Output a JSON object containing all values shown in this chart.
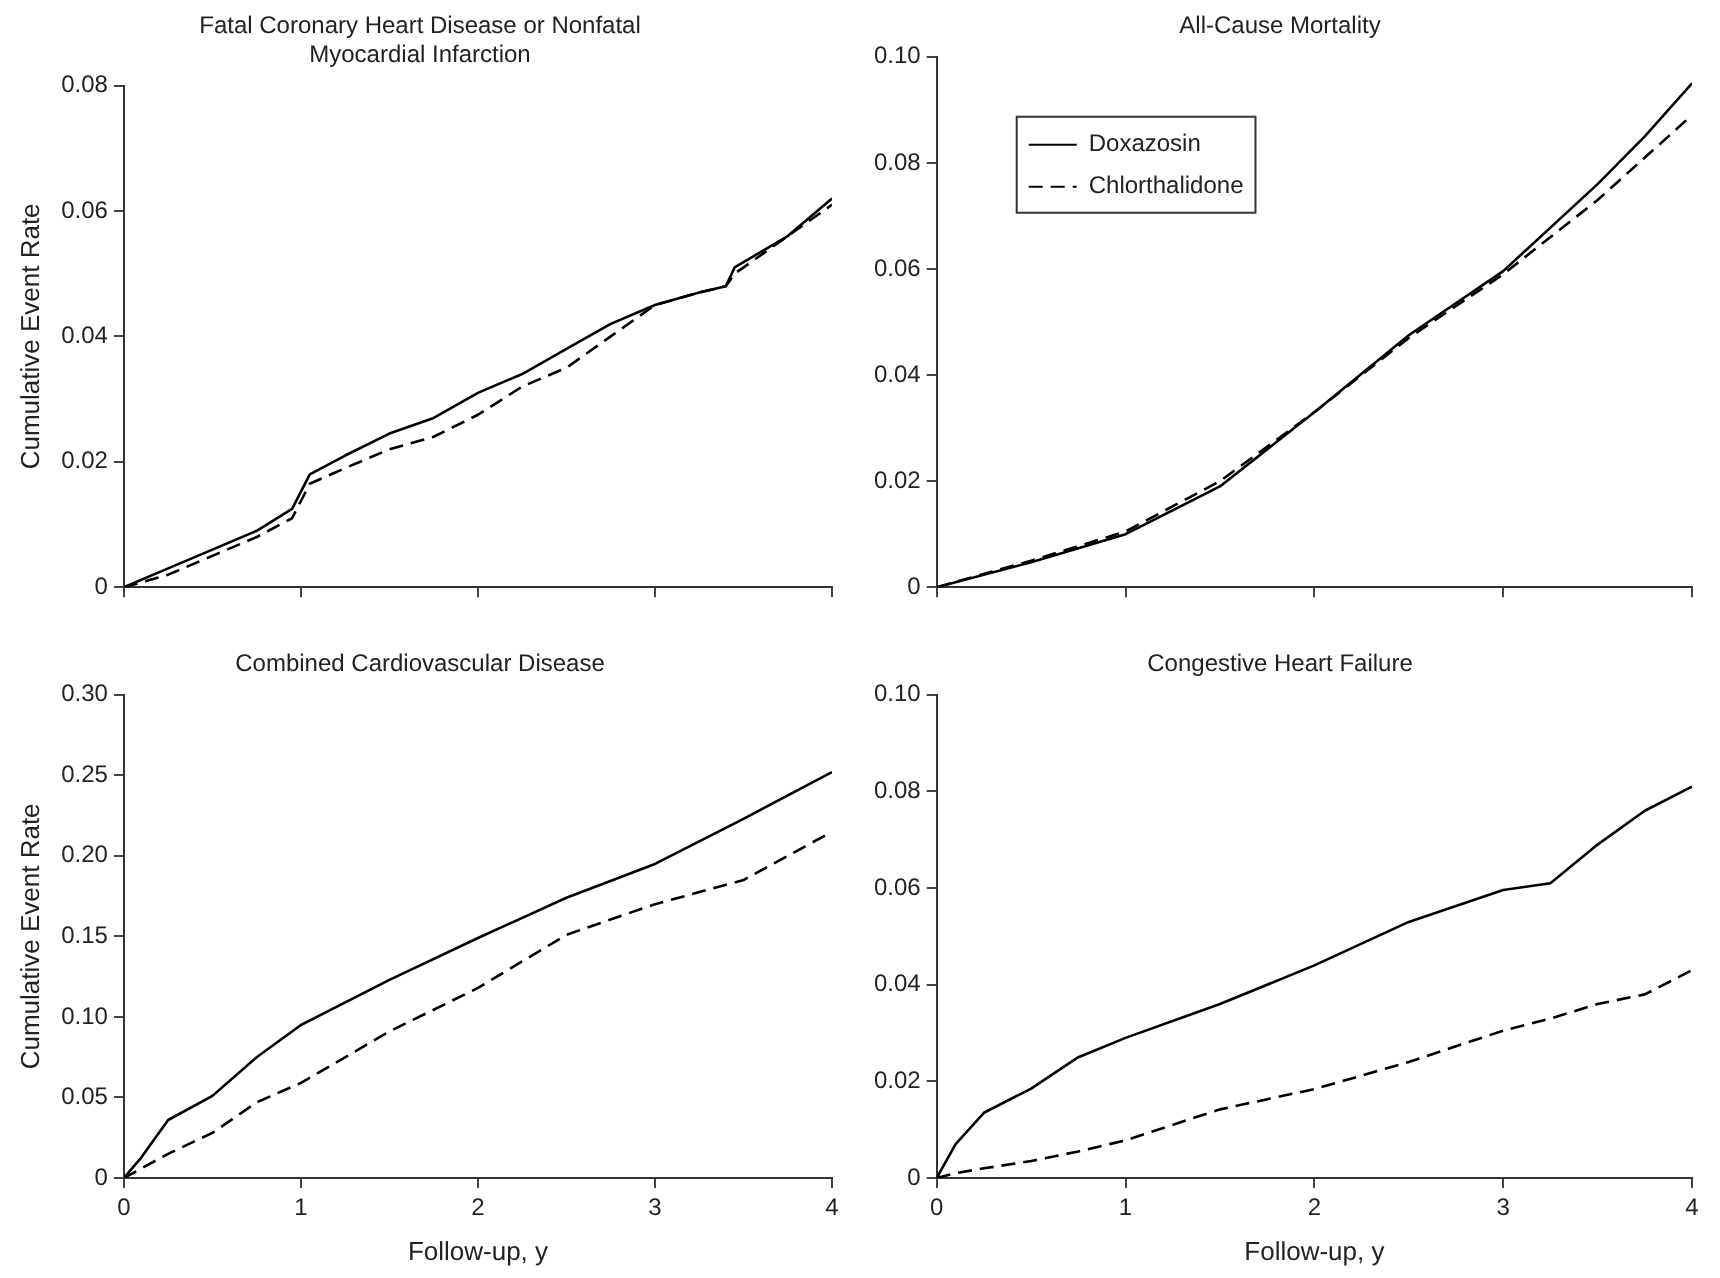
{
  "chart_data": [
    {
      "type": "line",
      "title": "Fatal Coronary Heart Disease or Nonfatal Myocardial Infarction",
      "ylabel": "Cumulative Event Rate",
      "x": [
        0,
        0.25,
        0.5,
        0.75,
        0.95,
        1.05,
        1.25,
        1.5,
        1.75,
        2,
        2.25,
        2.5,
        2.75,
        3,
        3.25,
        3.4,
        3.45,
        3.75,
        4
      ],
      "series": [
        {
          "color": "#000000",
          "line_style": "solid",
          "values": [
            0,
            0.003,
            0.006,
            0.009,
            0.0125,
            0.018,
            0.021,
            0.0245,
            0.027,
            0.031,
            0.034,
            0.038,
            0.042,
            0.045,
            0.047,
            0.048,
            0.051,
            0.056,
            0.062
          ]
        },
        {
          "color": "#000000",
          "line_style": "dashed",
          "values": [
            0,
            0.002,
            0.005,
            0.008,
            0.011,
            0.0165,
            0.019,
            0.022,
            0.024,
            0.0275,
            0.032,
            0.035,
            0.04,
            0.045,
            0.047,
            0.048,
            0.05,
            0.056,
            0.061
          ]
        }
      ],
      "xlim": [
        0,
        4
      ],
      "xticks": [
        {
          "value": 0,
          "label": null
        },
        {
          "value": 1,
          "label": null
        },
        {
          "value": 2,
          "label": null
        },
        {
          "value": 3,
          "label": null
        },
        {
          "value": 4,
          "label": null
        }
      ],
      "ylim": [
        0,
        0.08
      ],
      "yticks": [
        0,
        0.02,
        0.04,
        0.06,
        0.08
      ],
      "tick_labels": "y",
      "grid": false,
      "legend": false,
      "marker": "none"
    },
    {
      "type": "line",
      "title": "All-Cause Mortality",
      "x": [
        0,
        0.5,
        1,
        1.5,
        2,
        2.5,
        3,
        3.5,
        3.75,
        4
      ],
      "series": [
        {
          "name": "Doxazosin",
          "color": "#000000",
          "line_style": "solid",
          "values": [
            0,
            0.0047,
            0.01,
            0.019,
            0.033,
            0.0475,
            0.0596,
            0.076,
            0.085,
            0.095
          ]
        },
        {
          "name": "Chlorthalidone",
          "color": "#000000",
          "line_style": "dashed",
          "values": [
            0,
            0.005,
            0.0105,
            0.02,
            0.033,
            0.047,
            0.059,
            0.073,
            0.081,
            0.089
          ]
        }
      ],
      "xlim": [
        0,
        4
      ],
      "xticks": [
        {
          "value": 0,
          "label": null
        },
        {
          "value": 1,
          "label": null
        },
        {
          "value": 2,
          "label": null
        },
        {
          "value": 3,
          "label": null
        },
        {
          "value": 4,
          "label": null
        }
      ],
      "ylim": [
        0,
        0.1
      ],
      "yticks": [
        0,
        0.02,
        0.04,
        0.06,
        0.08,
        {
          "value": 0.1,
          "label": "0.10"
        }
      ],
      "tick_labels": "y",
      "grid": false,
      "legend": "top left",
      "marker": "none"
    },
    {
      "type": "line",
      "title": "Combined Cardiovascular Disease",
      "xlabel": "Follow-up, y",
      "ylabel": "Cumulative Event Rate",
      "x": [
        0,
        0.1,
        0.25,
        0.5,
        0.75,
        1,
        1.5,
        2,
        2.5,
        3,
        3.5,
        4
      ],
      "series": [
        {
          "color": "#000000",
          "line_style": "solid",
          "values": [
            0,
            0.013,
            0.036,
            0.051,
            0.075,
            0.095,
            0.123,
            0.149,
            0.174,
            0.195,
            0.223,
            0.252
          ]
        },
        {
          "color": "#000000",
          "line_style": "dashed",
          "values": [
            0,
            0.006,
            0.015,
            0.028,
            0.047,
            0.059,
            0.091,
            0.118,
            0.151,
            0.17,
            0.185,
            0.215
          ]
        }
      ],
      "xlim": [
        0,
        4
      ],
      "xticks": [
        0,
        1,
        2,
        3,
        4
      ],
      "ylim": [
        0,
        0.3
      ],
      "yticks": [
        0,
        0.05,
        {
          "value": 0.1,
          "label": "0.10"
        },
        0.15,
        {
          "value": 0.2,
          "label": "0.20"
        },
        0.25,
        {
          "value": 0.3,
          "label": "0.30"
        }
      ],
      "grid": false,
      "legend": false,
      "marker": "none"
    },
    {
      "type": "line",
      "title": "Congestive Heart Failure",
      "xlabel": "Follow-up, y",
      "x": [
        0,
        0.1,
        0.25,
        0.5,
        0.75,
        1,
        1.5,
        2,
        2.5,
        3,
        3.25,
        3.5,
        3.75,
        4
      ],
      "series": [
        {
          "color": "#000000",
          "line_style": "solid",
          "values": [
            0,
            0.007,
            0.0135,
            0.0185,
            0.025,
            0.029,
            0.036,
            0.044,
            0.053,
            0.0596,
            0.061,
            0.069,
            0.076,
            0.081
          ]
        },
        {
          "color": "#000000",
          "line_style": "dashed",
          "values": [
            0,
            0.001,
            0.002,
            0.0035,
            0.0055,
            0.0078,
            0.0142,
            0.0184,
            0.024,
            0.0305,
            0.033,
            0.036,
            0.038,
            0.043
          ]
        }
      ],
      "xlim": [
        0,
        4
      ],
      "xticks": [
        0,
        1,
        2,
        3,
        4
      ],
      "ylim": [
        0,
        0.1
      ],
      "yticks": [
        0,
        0.02,
        0.04,
        0.06,
        0.08,
        {
          "value": 0.1,
          "label": "0.10"
        }
      ],
      "grid": false,
      "legend": false,
      "marker": "none"
    }
  ]
}
